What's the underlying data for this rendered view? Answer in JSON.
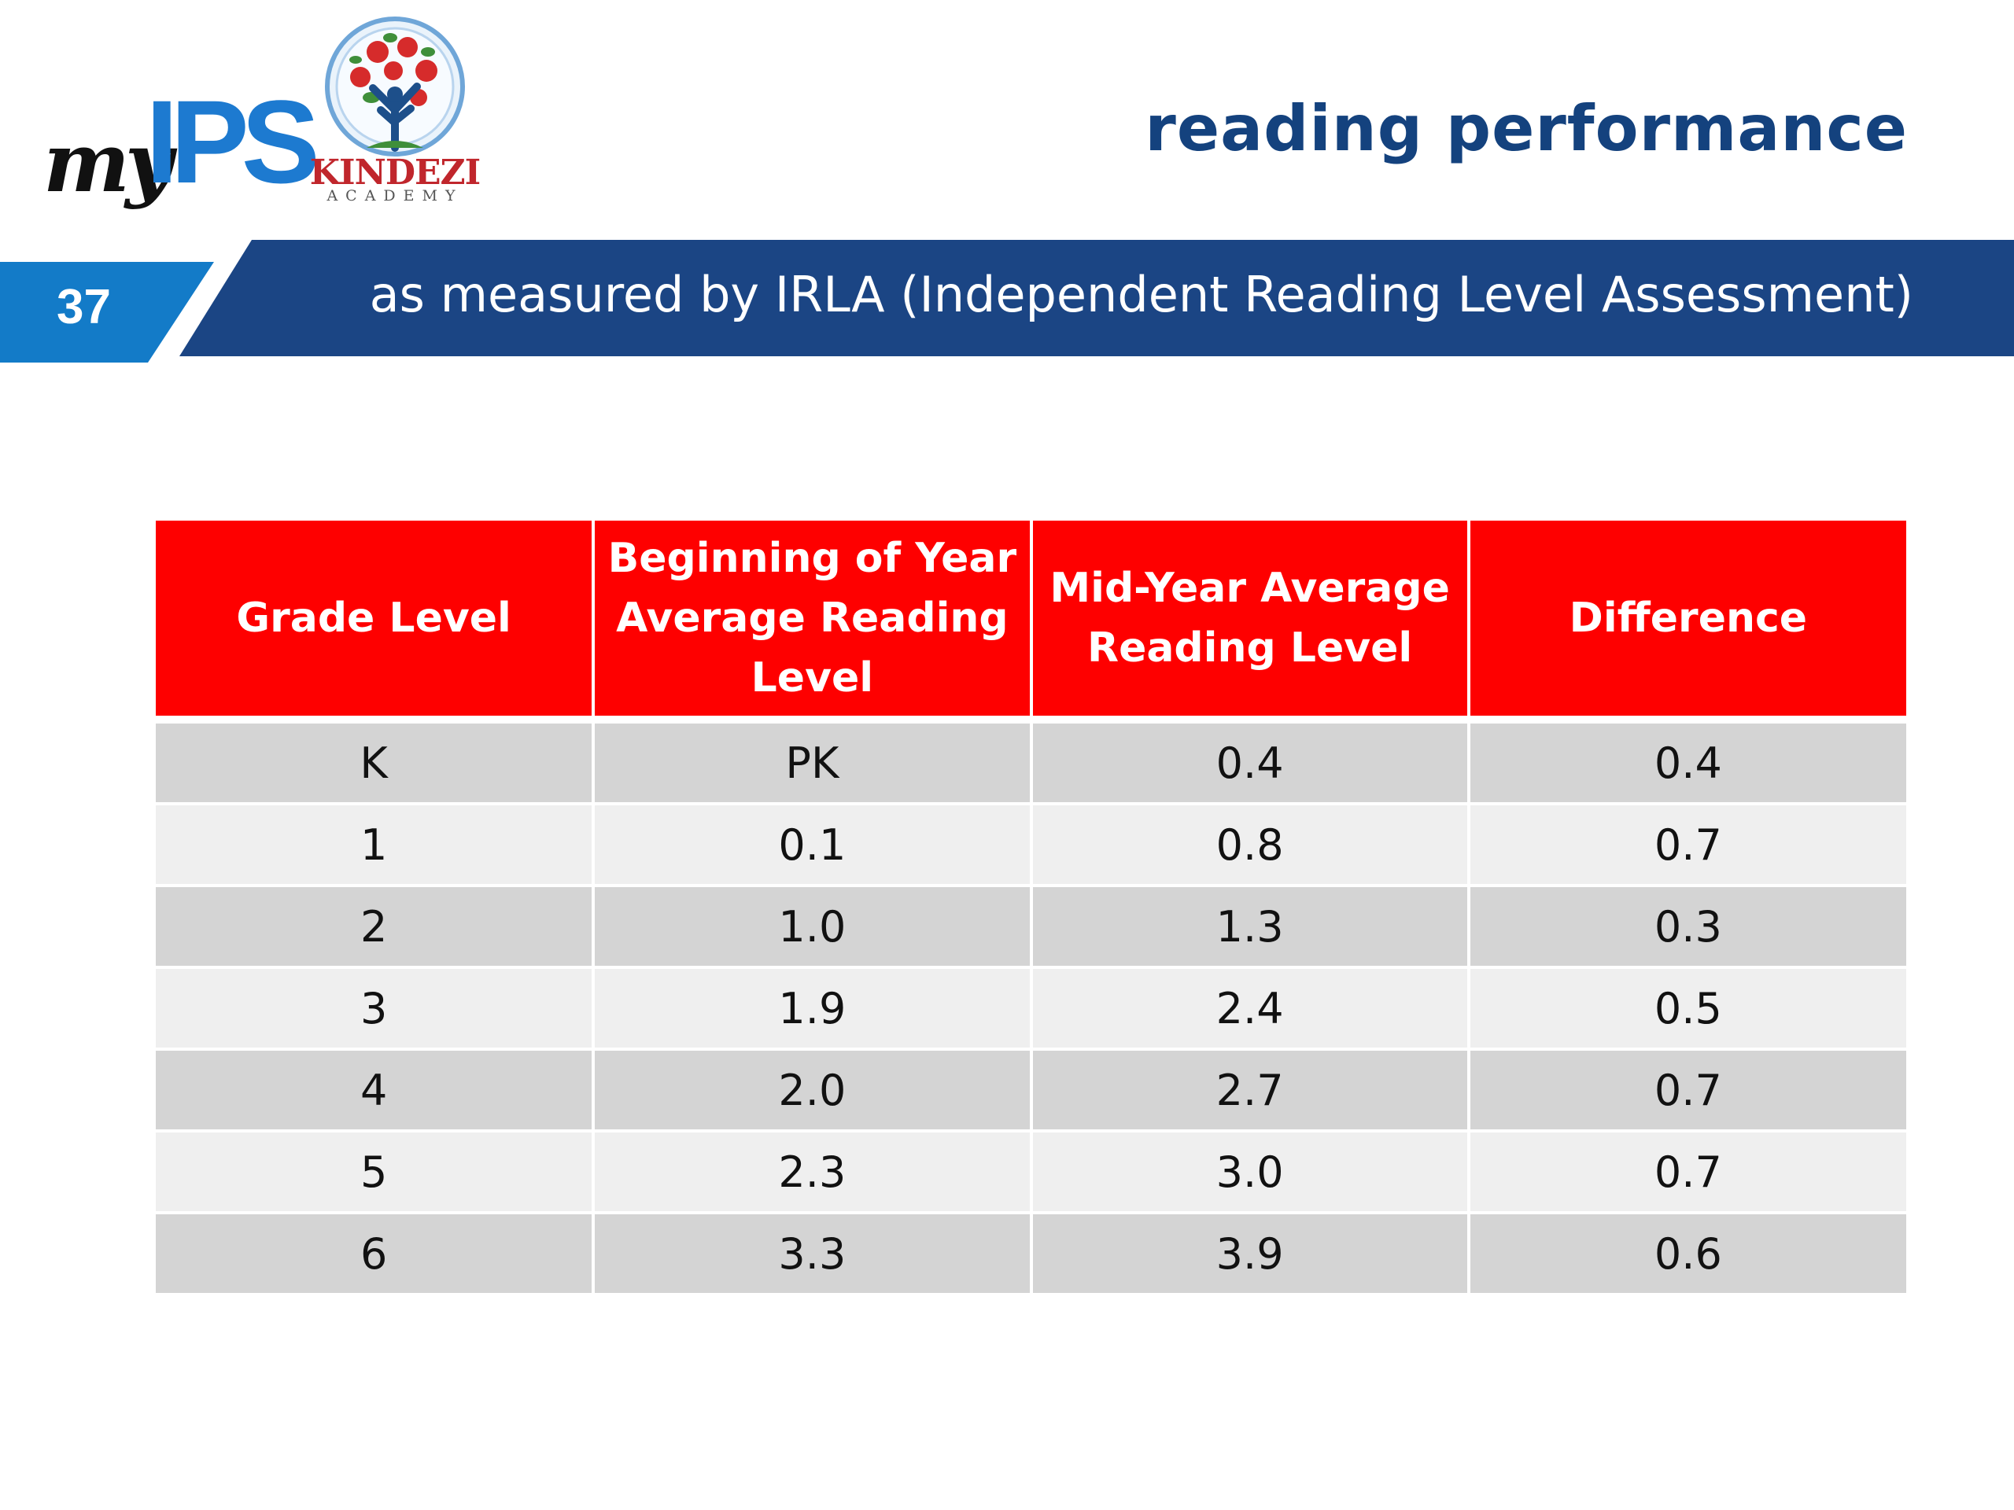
{
  "logos": {
    "myips": {
      "my": "my",
      "ips": "IPS",
      "icon": "myips-logo-icon"
    },
    "kindezi": {
      "name": "KINDEZI",
      "sub": "ACADEMY",
      "icon": "kindezi-tree-logo-icon"
    }
  },
  "slide": {
    "title": "reading performance",
    "number": "37",
    "subtitle": "as measured by IRLA (Independent Reading Level Assessment)"
  },
  "colors": {
    "banner_navy": "#1b4584",
    "number_blue": "#137bc8",
    "header_red": "#fe0000",
    "row_dark": "#d4d4d4",
    "row_light": "#efefef",
    "title_navy": "#14427e"
  },
  "table": {
    "headers": [
      "Grade Level",
      "Beginning of Year Average Reading Level",
      "Mid-Year Average Reading Level",
      "Difference"
    ],
    "rows": [
      [
        "K",
        "PK",
        "0.4",
        "0.4"
      ],
      [
        "1",
        "0.1",
        "0.8",
        "0.7"
      ],
      [
        "2",
        "1.0",
        "1.3",
        "0.3"
      ],
      [
        "3",
        "1.9",
        "2.4",
        "0.5"
      ],
      [
        "4",
        "2.0",
        "2.7",
        "0.7"
      ],
      [
        "5",
        "2.3",
        "3.0",
        "0.7"
      ],
      [
        "6",
        "3.3",
        "3.9",
        "0.6"
      ]
    ]
  }
}
